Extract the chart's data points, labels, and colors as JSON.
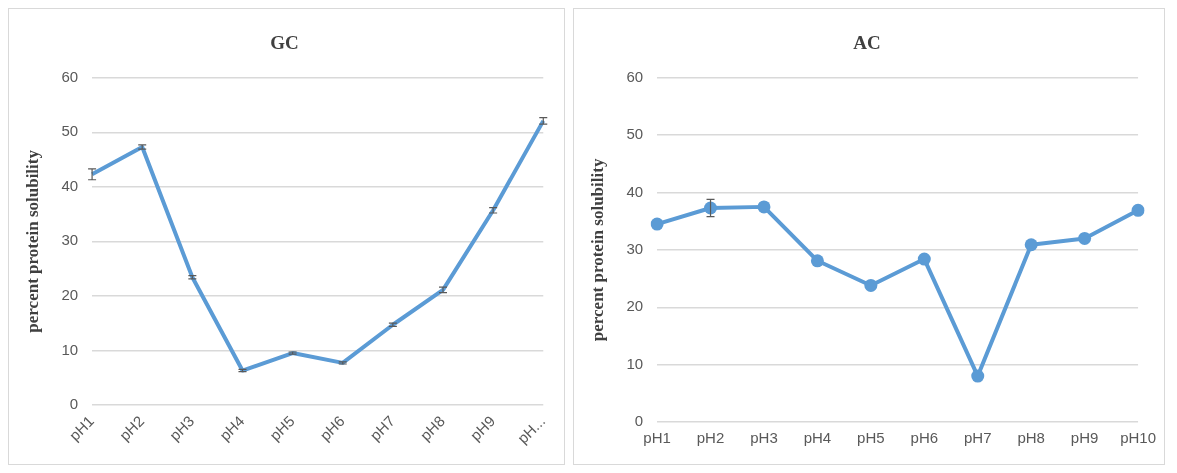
{
  "chart_data": [
    {
      "type": "line",
      "title": "GC",
      "ylabel": "percent protein solubility",
      "categories": [
        "pH1",
        "pH2",
        "pH3",
        "pH4",
        "pH5",
        "pH6",
        "pH7",
        "pH8",
        "pH9",
        "pH..."
      ],
      "series": [
        {
          "color": "#5b9bd5",
          "values": [
            42.3,
            47.3,
            23.4,
            6.3,
            9.5,
            7.7,
            14.7,
            21.1,
            35.7,
            52.1
          ],
          "errors": [
            1.0,
            0.4,
            0.3,
            0.2,
            0.2,
            0.2,
            0.3,
            0.5,
            0.5,
            0.6
          ]
        }
      ],
      "ylim": [
        0,
        60
      ],
      "yticks": [
        0,
        10,
        20,
        30,
        40,
        50,
        60
      ],
      "grid": "y",
      "marker": "none"
    },
    {
      "type": "line",
      "title": "AC",
      "ylabel": "percent protein solubility",
      "categories": [
        "pH1",
        "pH2",
        "pH3",
        "pH4",
        "pH5",
        "pH6",
        "pH7",
        "pH8",
        "pH9",
        "pH10"
      ],
      "series": [
        {
          "color": "#5b9bd5",
          "values": [
            34.5,
            37.3,
            37.5,
            28.1,
            23.8,
            28.4,
            8.0,
            30.9,
            32.0,
            36.9
          ],
          "errors": [
            null,
            1.5,
            null,
            null,
            null,
            null,
            null,
            null,
            null,
            null
          ]
        }
      ],
      "ylim": [
        0,
        60
      ],
      "yticks": [
        0,
        10,
        20,
        30,
        40,
        50,
        60
      ],
      "grid": "y",
      "marker": "circle"
    }
  ]
}
